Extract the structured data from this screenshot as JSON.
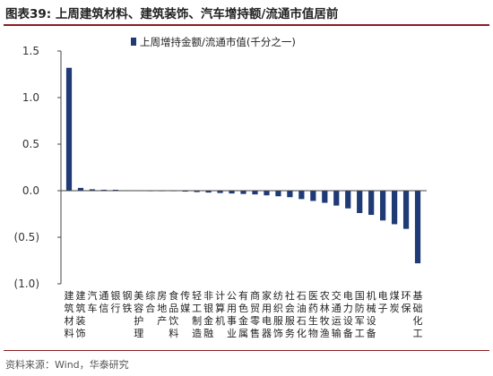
{
  "figure": {
    "title": "图表39:  上周建筑材料、建筑装饰、汽车增持额/流通市值居前",
    "source": "资料来源：Wind，华泰研究"
  },
  "chart_data": {
    "type": "bar",
    "title": "",
    "xlabel": "",
    "ylabel": "",
    "ylim": [
      -1.0,
      1.5
    ],
    "yticks": [
      1.5,
      1.0,
      0.5,
      0.0,
      -0.5,
      -1.0
    ],
    "ytick_labels": [
      "1.5",
      "1.0",
      "0.5",
      "0.0",
      "(0.5)",
      "(1.0)"
    ],
    "grid": false,
    "legend_position": "top",
    "bar_color": "#1f3a75",
    "categories": [
      "建筑材料",
      "建筑装饰",
      "汽车",
      "通信",
      "银行",
      "钢铁",
      "美容护理",
      "综合",
      "房地产",
      "食品饮料",
      "传媒",
      "轻工制造",
      "非银金融",
      "计算机",
      "公用事业",
      "有色金属",
      "商贸零售",
      "家用电器",
      "纺织服饰",
      "社会服务",
      "石油石化",
      "医药生物",
      "农林牧渔",
      "交通运输",
      "电力设备",
      "国防军工",
      "机械设备",
      "电子",
      "煤炭",
      "环保",
      "基础化工"
    ],
    "series": [
      {
        "name": "上周增持金额/流通市值(千分之一)",
        "values": [
          1.32,
          0.03,
          0.015,
          0.01,
          0.01,
          0.005,
          0.005,
          0.0,
          0.0,
          -0.005,
          -0.01,
          -0.015,
          -0.02,
          -0.025,
          -0.03,
          -0.035,
          -0.04,
          -0.05,
          -0.06,
          -0.07,
          -0.09,
          -0.11,
          -0.13,
          -0.16,
          -0.19,
          -0.24,
          -0.26,
          -0.32,
          -0.36,
          -0.41,
          -0.78
        ]
      }
    ]
  }
}
